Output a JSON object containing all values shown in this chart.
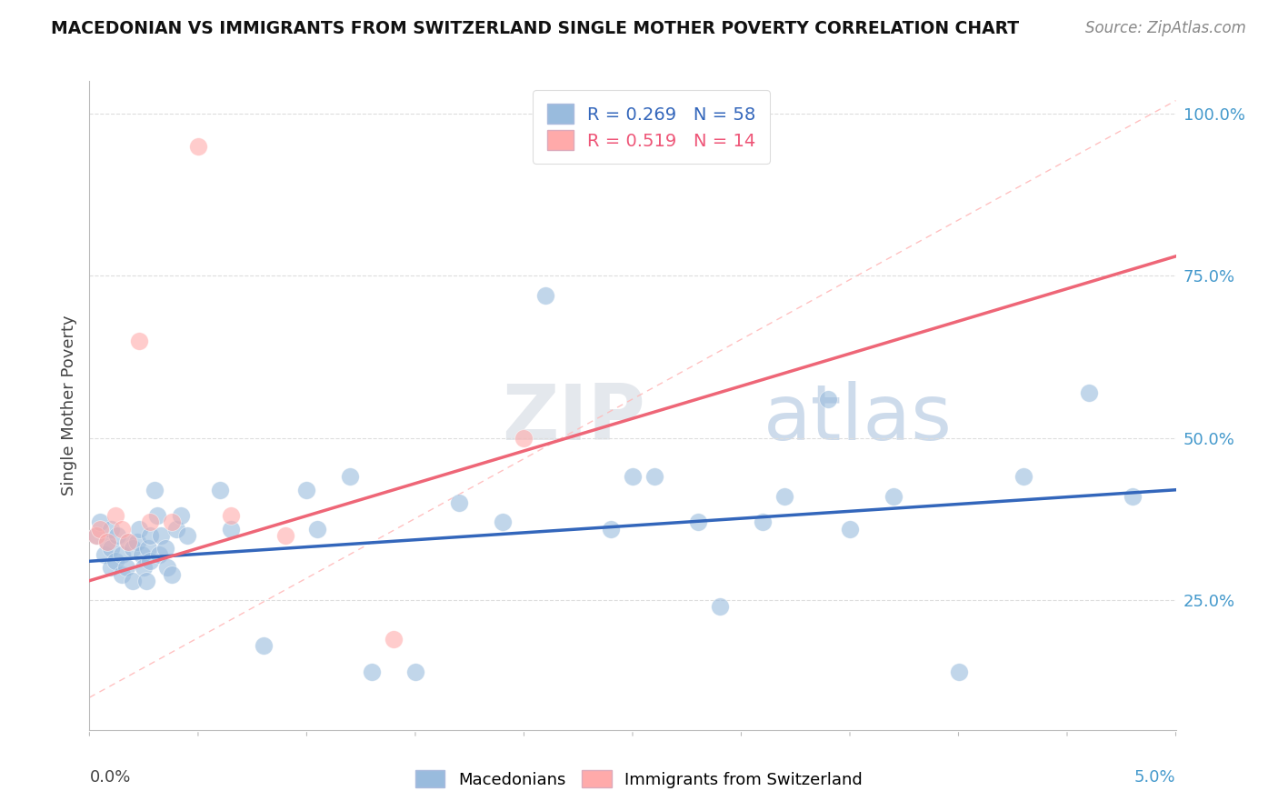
{
  "title": "MACEDONIAN VS IMMIGRANTS FROM SWITZERLAND SINGLE MOTHER POVERTY CORRELATION CHART",
  "source": "Source: ZipAtlas.com",
  "ylabel": "Single Mother Poverty",
  "legend_label1": "Macedonians",
  "legend_label2": "Immigrants from Switzerland",
  "R1": "0.269",
  "N1": "58",
  "R2": "0.519",
  "N2": "14",
  "blue_color": "#99BBDD",
  "pink_color": "#FFAAAA",
  "blue_line_color": "#3366BB",
  "pink_line_color": "#EE6677",
  "ref_line_color": "#FFCCCC",
  "xlim": [
    0.0,
    0.05
  ],
  "ylim": [
    0.05,
    1.05
  ],
  "blue_dots_x": [
    0.0003,
    0.0005,
    0.0007,
    0.0008,
    0.001,
    0.001,
    0.001,
    0.0012,
    0.0013,
    0.0015,
    0.0015,
    0.0017,
    0.0018,
    0.002,
    0.002,
    0.0022,
    0.0023,
    0.0024,
    0.0025,
    0.0026,
    0.0027,
    0.0028,
    0.0028,
    0.003,
    0.0031,
    0.0032,
    0.0033,
    0.0035,
    0.0036,
    0.0038,
    0.004,
    0.0042,
    0.0045,
    0.006,
    0.0065,
    0.008,
    0.01,
    0.0105,
    0.012,
    0.013,
    0.015,
    0.017,
    0.019,
    0.021,
    0.024,
    0.026,
    0.029,
    0.031,
    0.034,
    0.037,
    0.04,
    0.043,
    0.046,
    0.048,
    0.025,
    0.028,
    0.032,
    0.035
  ],
  "blue_dots_y": [
    0.35,
    0.37,
    0.32,
    0.34,
    0.33,
    0.36,
    0.3,
    0.31,
    0.35,
    0.29,
    0.32,
    0.3,
    0.34,
    0.28,
    0.33,
    0.34,
    0.36,
    0.32,
    0.3,
    0.28,
    0.33,
    0.35,
    0.31,
    0.42,
    0.38,
    0.32,
    0.35,
    0.33,
    0.3,
    0.29,
    0.36,
    0.38,
    0.35,
    0.42,
    0.36,
    0.18,
    0.42,
    0.36,
    0.44,
    0.14,
    0.14,
    0.4,
    0.37,
    0.72,
    0.36,
    0.44,
    0.24,
    0.37,
    0.56,
    0.41,
    0.14,
    0.44,
    0.57,
    0.41,
    0.44,
    0.37,
    0.41,
    0.36
  ],
  "pink_dots_x": [
    0.0003,
    0.0005,
    0.0008,
    0.0012,
    0.0015,
    0.0018,
    0.0023,
    0.0028,
    0.0038,
    0.005,
    0.0065,
    0.009,
    0.014,
    0.02
  ],
  "pink_dots_y": [
    0.35,
    0.36,
    0.34,
    0.38,
    0.36,
    0.34,
    0.65,
    0.37,
    0.37,
    0.95,
    0.38,
    0.35,
    0.19,
    0.5
  ]
}
